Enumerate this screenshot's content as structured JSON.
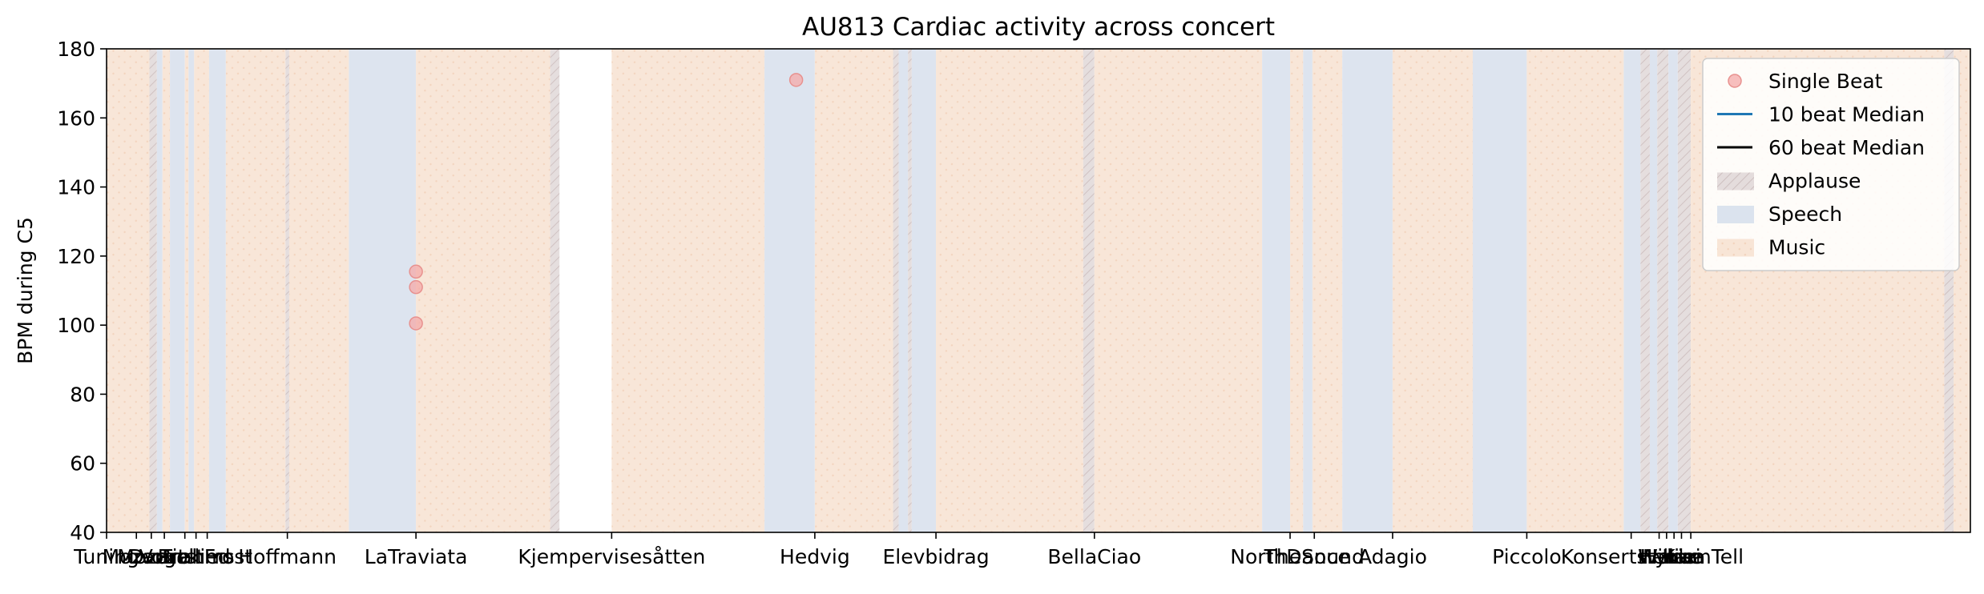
{
  "chart_data": {
    "type": "scatter",
    "title": "AU813 Cardiac activity across concert",
    "xlabel": "",
    "ylabel": "BPM during C5",
    "xlim": [
      0,
      100
    ],
    "ylim": [
      40,
      180
    ],
    "yticks": [
      40,
      60,
      80,
      100,
      120,
      140,
      160,
      180
    ],
    "grid": false,
    "legend_position": "top-right",
    "legend": [
      {
        "label": "Single Beat",
        "kind": "marker",
        "color": "#f4a9a8"
      },
      {
        "label": "10 beat Median",
        "kind": "line",
        "color": "#1f77b4"
      },
      {
        "label": "60 beat Median",
        "kind": "line",
        "color": "#000000"
      },
      {
        "label": "Applause",
        "kind": "patch",
        "color": "#d9cfcf"
      },
      {
        "label": "Speech",
        "kind": "patch",
        "color": "#dbe3ee"
      },
      {
        "label": "Music",
        "kind": "patch",
        "color": "#f8e5d6"
      }
    ],
    "segments": [
      {
        "type": "Music",
        "start": 0.0,
        "end": 2.3
      },
      {
        "type": "Applause",
        "start": 2.3,
        "end": 2.7
      },
      {
        "type": "Speech",
        "start": 2.7,
        "end": 3.0
      },
      {
        "type": "Music",
        "start": 3.0,
        "end": 3.4
      },
      {
        "type": "Speech",
        "start": 3.4,
        "end": 4.2
      },
      {
        "type": "Music",
        "start": 4.2,
        "end": 4.4
      },
      {
        "type": "Speech",
        "start": 4.4,
        "end": 4.7
      },
      {
        "type": "Music",
        "start": 4.7,
        "end": 5.5
      },
      {
        "type": "Speech",
        "start": 5.5,
        "end": 6.4
      },
      {
        "type": "Music",
        "start": 6.4,
        "end": 9.6
      },
      {
        "type": "Applause",
        "start": 9.6,
        "end": 9.8
      },
      {
        "type": "Music",
        "start": 9.8,
        "end": 13.0
      },
      {
        "type": "Speech",
        "start": 13.0,
        "end": 16.6
      },
      {
        "type": "Music",
        "start": 16.6,
        "end": 23.8
      },
      {
        "type": "Applause",
        "start": 23.8,
        "end": 24.3
      },
      {
        "type": "Music",
        "start": 27.1,
        "end": 35.3
      },
      {
        "type": "Speech",
        "start": 35.3,
        "end": 38.0
      },
      {
        "type": "Music",
        "start": 38.0,
        "end": 42.2
      },
      {
        "type": "Applause",
        "start": 42.2,
        "end": 42.5
      },
      {
        "type": "Speech",
        "start": 42.5,
        "end": 43.0
      },
      {
        "type": "Applause",
        "start": 43.0,
        "end": 43.2
      },
      {
        "type": "Speech",
        "start": 43.2,
        "end": 44.5
      },
      {
        "type": "Music",
        "start": 44.5,
        "end": 52.4
      },
      {
        "type": "Applause",
        "start": 52.4,
        "end": 53.0
      },
      {
        "type": "Music",
        "start": 53.0,
        "end": 62.0
      },
      {
        "type": "Speech",
        "start": 62.0,
        "end": 63.5
      },
      {
        "type": "Music",
        "start": 63.5,
        "end": 64.2
      },
      {
        "type": "Speech",
        "start": 64.2,
        "end": 64.7
      },
      {
        "type": "Music",
        "start": 64.7,
        "end": 66.3
      },
      {
        "type": "Speech",
        "start": 66.3,
        "end": 69.0
      },
      {
        "type": "Music",
        "start": 69.0,
        "end": 73.3
      },
      {
        "type": "Speech",
        "start": 73.3,
        "end": 76.2
      },
      {
        "type": "Music",
        "start": 76.2,
        "end": 76.7
      },
      {
        "type": "Music",
        "start": 76.7,
        "end": 81.4
      },
      {
        "type": "Speech",
        "start": 81.4,
        "end": 82.3
      },
      {
        "type": "Applause",
        "start": 82.3,
        "end": 82.8
      },
      {
        "type": "Speech",
        "start": 82.8,
        "end": 83.2
      },
      {
        "type": "Applause",
        "start": 83.2,
        "end": 83.8
      },
      {
        "type": "Speech",
        "start": 83.8,
        "end": 84.3
      },
      {
        "type": "Applause",
        "start": 84.3,
        "end": 85.0
      },
      {
        "type": "Music",
        "start": 85.0,
        "end": 98.6
      },
      {
        "type": "Applause",
        "start": 98.6,
        "end": 99.1
      },
      {
        "type": "Music",
        "start": 99.1,
        "end": 100.0
      }
    ],
    "x_ticks": [
      {
        "x": 0.0,
        "label": "Tuning"
      },
      {
        "x": 1.6,
        "label": "Mozart"
      },
      {
        "x": 2.4,
        "label": "Mozart"
      },
      {
        "x": 3.1,
        "label": "Dvorak"
      },
      {
        "x": 4.2,
        "label": "Vogellied"
      },
      {
        "x": 4.8,
        "label": "Brahms"
      },
      {
        "x": 5.4,
        "label": "FirstFrost"
      },
      {
        "x": 9.7,
        "label": "Hoffmann"
      },
      {
        "x": 16.6,
        "label": "LaTraviata"
      },
      {
        "x": 27.1,
        "label": "Kjempervisesåtten"
      },
      {
        "x": 38.0,
        "label": "Hedvig"
      },
      {
        "x": 44.5,
        "label": "Elevbidrag"
      },
      {
        "x": 53.0,
        "label": "BellaCiao"
      },
      {
        "x": 63.5,
        "label": "NorthDance"
      },
      {
        "x": 64.8,
        "label": "TheSound"
      },
      {
        "x": 69.0,
        "label": "Adagio"
      },
      {
        "x": 76.2,
        "label": "Piccolo"
      },
      {
        "x": 81.8,
        "label": "Konsertstykke"
      },
      {
        "x": 83.3,
        "label": "Ivar"
      },
      {
        "x": 83.7,
        "label": "Henie"
      },
      {
        "x": 84.1,
        "label": "Hansa"
      },
      {
        "x": 84.5,
        "label": "Kari"
      },
      {
        "x": 85.0,
        "label": "WilliamTell"
      }
    ],
    "series": [
      {
        "name": "Single Beat",
        "points": [
          {
            "x": 16.6,
            "y": 115.5
          },
          {
            "x": 16.6,
            "y": 111
          },
          {
            "x": 16.6,
            "y": 100.5
          },
          {
            "x": 37.0,
            "y": 171
          }
        ]
      }
    ]
  }
}
